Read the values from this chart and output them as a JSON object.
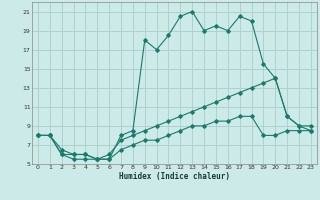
{
  "title": "",
  "xlabel": "Humidex (Indice chaleur)",
  "ylabel": "",
  "background_color": "#cceae7",
  "grid_color": "#b0d0cd",
  "line_color": "#1a7a6e",
  "xlim": [
    -0.5,
    23.5
  ],
  "ylim": [
    5,
    22
  ],
  "yticks": [
    5,
    7,
    9,
    11,
    13,
    15,
    17,
    19,
    21
  ],
  "xticks": [
    0,
    1,
    2,
    3,
    4,
    5,
    6,
    7,
    8,
    9,
    10,
    11,
    12,
    13,
    14,
    15,
    16,
    17,
    18,
    19,
    20,
    21,
    22,
    23
  ],
  "series": [
    {
      "x": [
        0,
        1,
        2,
        3,
        4,
        5,
        6,
        7,
        8,
        9,
        10,
        11,
        12,
        13,
        14,
        15,
        16,
        17,
        18,
        19,
        20,
        21,
        22,
        23
      ],
      "y": [
        8,
        8,
        6,
        6,
        6,
        5.5,
        5.5,
        8,
        8.5,
        18,
        17,
        18.5,
        20.5,
        21,
        19,
        19.5,
        19,
        20.5,
        20,
        15.5,
        14,
        10,
        9,
        9
      ]
    },
    {
      "x": [
        0,
        1,
        2,
        3,
        4,
        5,
        6,
        7,
        8,
        9,
        10,
        11,
        12,
        13,
        14,
        15,
        16,
        17,
        18,
        19,
        20,
        21,
        22,
        23
      ],
      "y": [
        8,
        8,
        6.5,
        6,
        6,
        5.5,
        6,
        7.5,
        8,
        8.5,
        9,
        9.5,
        10,
        10.5,
        11,
        11.5,
        12,
        12.5,
        13,
        13.5,
        14,
        10,
        9,
        8.5
      ]
    },
    {
      "x": [
        0,
        1,
        2,
        3,
        4,
        5,
        6,
        7,
        8,
        9,
        10,
        11,
        12,
        13,
        14,
        15,
        16,
        17,
        18,
        19,
        20,
        21,
        22,
        23
      ],
      "y": [
        8,
        8,
        6,
        5.5,
        5.5,
        5.5,
        5.5,
        6.5,
        7,
        7.5,
        7.5,
        8,
        8.5,
        9,
        9,
        9.5,
        9.5,
        10,
        10,
        8,
        8,
        8.5,
        8.5,
        8.5
      ]
    }
  ]
}
